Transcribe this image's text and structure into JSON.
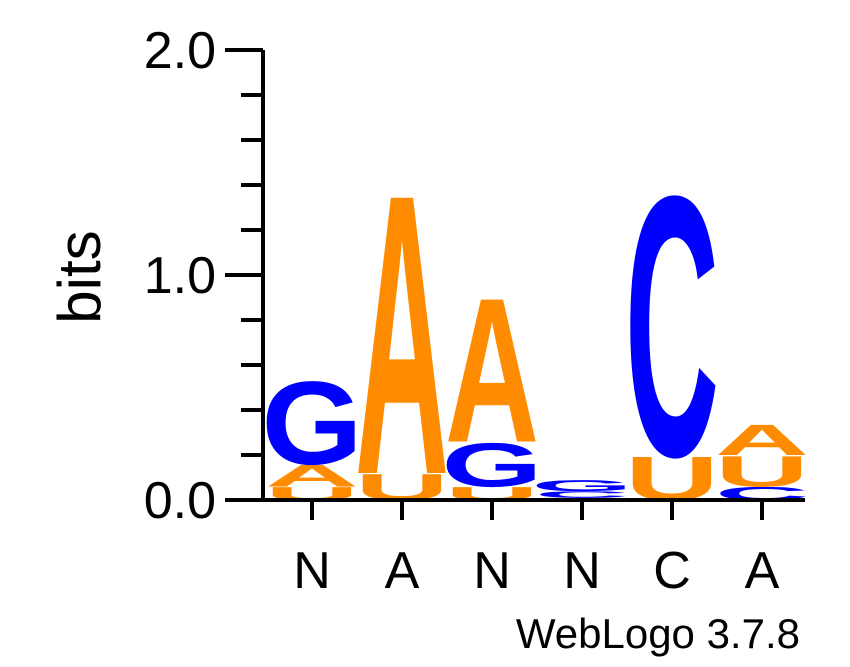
{
  "chart_data": {
    "type": "sequence-logo",
    "title": "",
    "xlabel": "",
    "ylabel": "bits",
    "ylim": [
      0,
      2.0
    ],
    "y_tick_labels": [
      "0.0",
      "1.0",
      "2.0"
    ],
    "y_ticks": [
      0.0,
      1.0,
      2.0
    ],
    "positions": [
      {
        "consensus": "N",
        "stack": [
          {
            "letter": "U",
            "bits": 0.06
          },
          {
            "letter": "A",
            "bits": 0.1
          },
          {
            "letter": "G",
            "bits": 0.38
          }
        ]
      },
      {
        "consensus": "A",
        "stack": [
          {
            "letter": "U",
            "bits": 0.12
          },
          {
            "letter": "A",
            "bits": 1.28
          }
        ]
      },
      {
        "consensus": "N",
        "stack": [
          {
            "letter": "U",
            "bits": 0.06
          },
          {
            "letter": "G",
            "bits": 0.2
          },
          {
            "letter": "A",
            "bits": 0.66
          }
        ]
      },
      {
        "consensus": "N",
        "stack": [
          {
            "letter": "U",
            "bits": 0.01
          },
          {
            "letter": "C",
            "bits": 0.03
          },
          {
            "letter": "G",
            "bits": 0.05
          }
        ]
      },
      {
        "consensus": "C",
        "stack": [
          {
            "letter": "U",
            "bits": 0.2
          },
          {
            "letter": "C",
            "bits": 1.19
          }
        ]
      },
      {
        "consensus": "A",
        "stack": [
          {
            "letter": "C",
            "bits": 0.06
          },
          {
            "letter": "U",
            "bits": 0.14
          },
          {
            "letter": "A",
            "bits": 0.14
          }
        ]
      }
    ],
    "letter_colors": {
      "A": "#ff8c00",
      "U": "#ff8c00",
      "G": "#0000ff",
      "C": "#0000ff"
    }
  },
  "footer": {
    "credit": "WebLogo 3.7.8"
  }
}
